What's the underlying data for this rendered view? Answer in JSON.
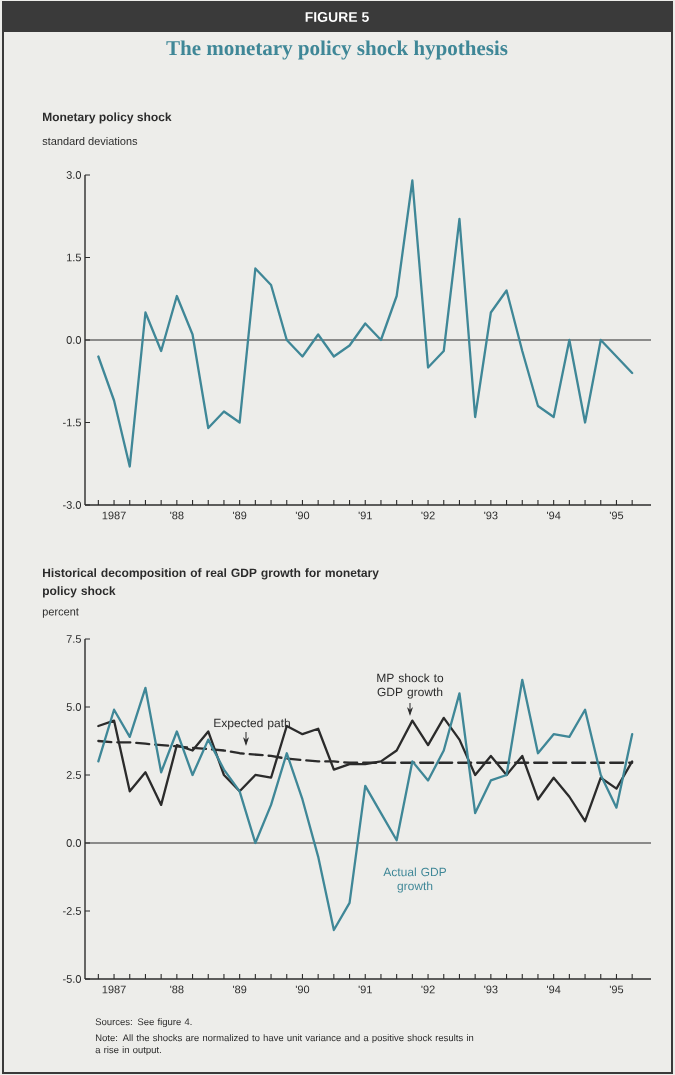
{
  "chart_data": [
    {
      "type": "line",
      "title": "The monetary policy shock hypothesis",
      "subtitle": "Monetary policy shock",
      "ylabel": "standard deviations",
      "annotations": [
        "FIGURE 5"
      ],
      "categories": [
        null,
        "1987",
        null,
        null,
        null,
        "'88",
        null,
        null,
        null,
        "'89",
        null,
        null,
        null,
        "'90",
        null,
        null,
        null,
        "'91",
        null,
        null,
        null,
        "'92",
        null,
        null,
        null,
        "'93",
        null,
        null,
        null,
        "'94",
        null,
        null,
        null,
        "'95",
        null
      ],
      "series": [
        {
          "color": "#3f8797",
          "line_style": "solid",
          "values": [
            -0.3,
            -1.1,
            -2.3,
            0.5,
            -0.2,
            0.8,
            0.1,
            -1.6,
            -1.3,
            -1.5,
            1.3,
            1.0,
            0.0,
            -0.3,
            0.1,
            -0.3,
            -0.1,
            0.3,
            0.0,
            0.8,
            2.9,
            -0.5,
            -0.2,
            2.2,
            -1.4,
            0.5,
            0.9,
            -0.2,
            -1.2,
            -1.4,
            0.0,
            -1.5,
            0.0,
            -0.3,
            -0.6
          ]
        }
      ],
      "ylim": [
        -3,
        3
      ],
      "yticks": [
        {
          "value": -3,
          "label": "-3.0"
        },
        {
          "value": -1.5,
          "label": "-1.5"
        },
        {
          "value": 0,
          "label": "0.0"
        },
        {
          "value": 1.5,
          "label": "1.5"
        },
        {
          "value": 3,
          "label": "3.0"
        }
      ],
      "ref_lines": [
        {
          "axis": "y",
          "value": 0,
          "color": "#2b2b2b"
        }
      ]
    },
    {
      "type": "line",
      "title": "Historical decomposition of real GDP growth for monetary policy shock",
      "ylabel": "percent",
      "annotations": [
        "Sources: See figure 4.",
        "Note: All the shocks are normalized to have unit variance and a positive shock results in a rise in output."
      ],
      "categories": [
        null,
        "1987",
        null,
        null,
        null,
        "'88",
        null,
        null,
        null,
        "'89",
        null,
        null,
        null,
        "'90",
        null,
        null,
        null,
        "'91",
        null,
        null,
        null,
        "'92",
        null,
        null,
        null,
        "'93",
        null,
        null,
        null,
        "'94",
        null,
        null,
        null,
        "'95",
        null
      ],
      "series": [
        {
          "name": "MP shock to GDP growth",
          "color": "#2b2b2b",
          "line_style": "solid",
          "values": [
            4.3,
            4.5,
            1.9,
            2.6,
            1.4,
            3.6,
            3.4,
            4.1,
            2.5,
            1.9,
            2.5,
            2.4,
            4.3,
            4.0,
            4.2,
            2.7,
            2.9,
            2.9,
            3.0,
            3.4,
            4.5,
            3.6,
            4.6,
            3.8,
            2.5,
            3.2,
            2.5,
            3.2,
            1.6,
            2.4,
            1.7,
            0.8,
            2.4,
            2.0,
            3.0
          ]
        },
        {
          "name": "Expected path",
          "color": "#2b2b2b",
          "line_style": "dashed",
          "values": [
            3.75,
            3.7,
            3.7,
            3.65,
            3.6,
            3.55,
            3.5,
            3.45,
            3.4,
            3.3,
            3.25,
            3.2,
            3.1,
            3.05,
            3.0,
            3.0,
            2.95,
            2.95,
            2.95,
            2.95,
            2.95,
            2.95,
            2.95,
            2.95,
            2.95,
            2.95,
            2.95,
            2.95,
            2.95,
            2.95,
            2.95,
            2.95,
            2.95,
            2.95,
            2.95
          ]
        },
        {
          "name": "Actual GDP growth",
          "color": "#3f8797",
          "line_style": "solid",
          "values": [
            3.0,
            4.9,
            3.9,
            5.7,
            2.6,
            4.1,
            2.5,
            3.8,
            2.7,
            1.9,
            0.0,
            1.4,
            3.3,
            1.6,
            -0.5,
            -3.2,
            -2.2,
            2.1,
            1.1,
            0.1,
            3.0,
            2.3,
            3.4,
            5.5,
            1.1,
            2.3,
            2.5,
            6.0,
            3.3,
            4.0,
            3.9,
            4.9,
            2.5,
            1.3,
            4.0
          ]
        }
      ],
      "ylim": [
        -5,
        7.5
      ],
      "yticks": [
        {
          "value": -5,
          "label": "-5.0"
        },
        {
          "value": -2.5,
          "label": "-2.5"
        },
        {
          "value": 0,
          "label": "0.0"
        },
        {
          "value": 2.5,
          "label": "2.5"
        },
        {
          "value": 5,
          "label": "5.0"
        },
        {
          "value": 7.5,
          "label": "7.5"
        }
      ],
      "ref_lines": [
        {
          "axis": "y",
          "value": 0,
          "color": "#2b2b2b"
        }
      ]
    }
  ]
}
